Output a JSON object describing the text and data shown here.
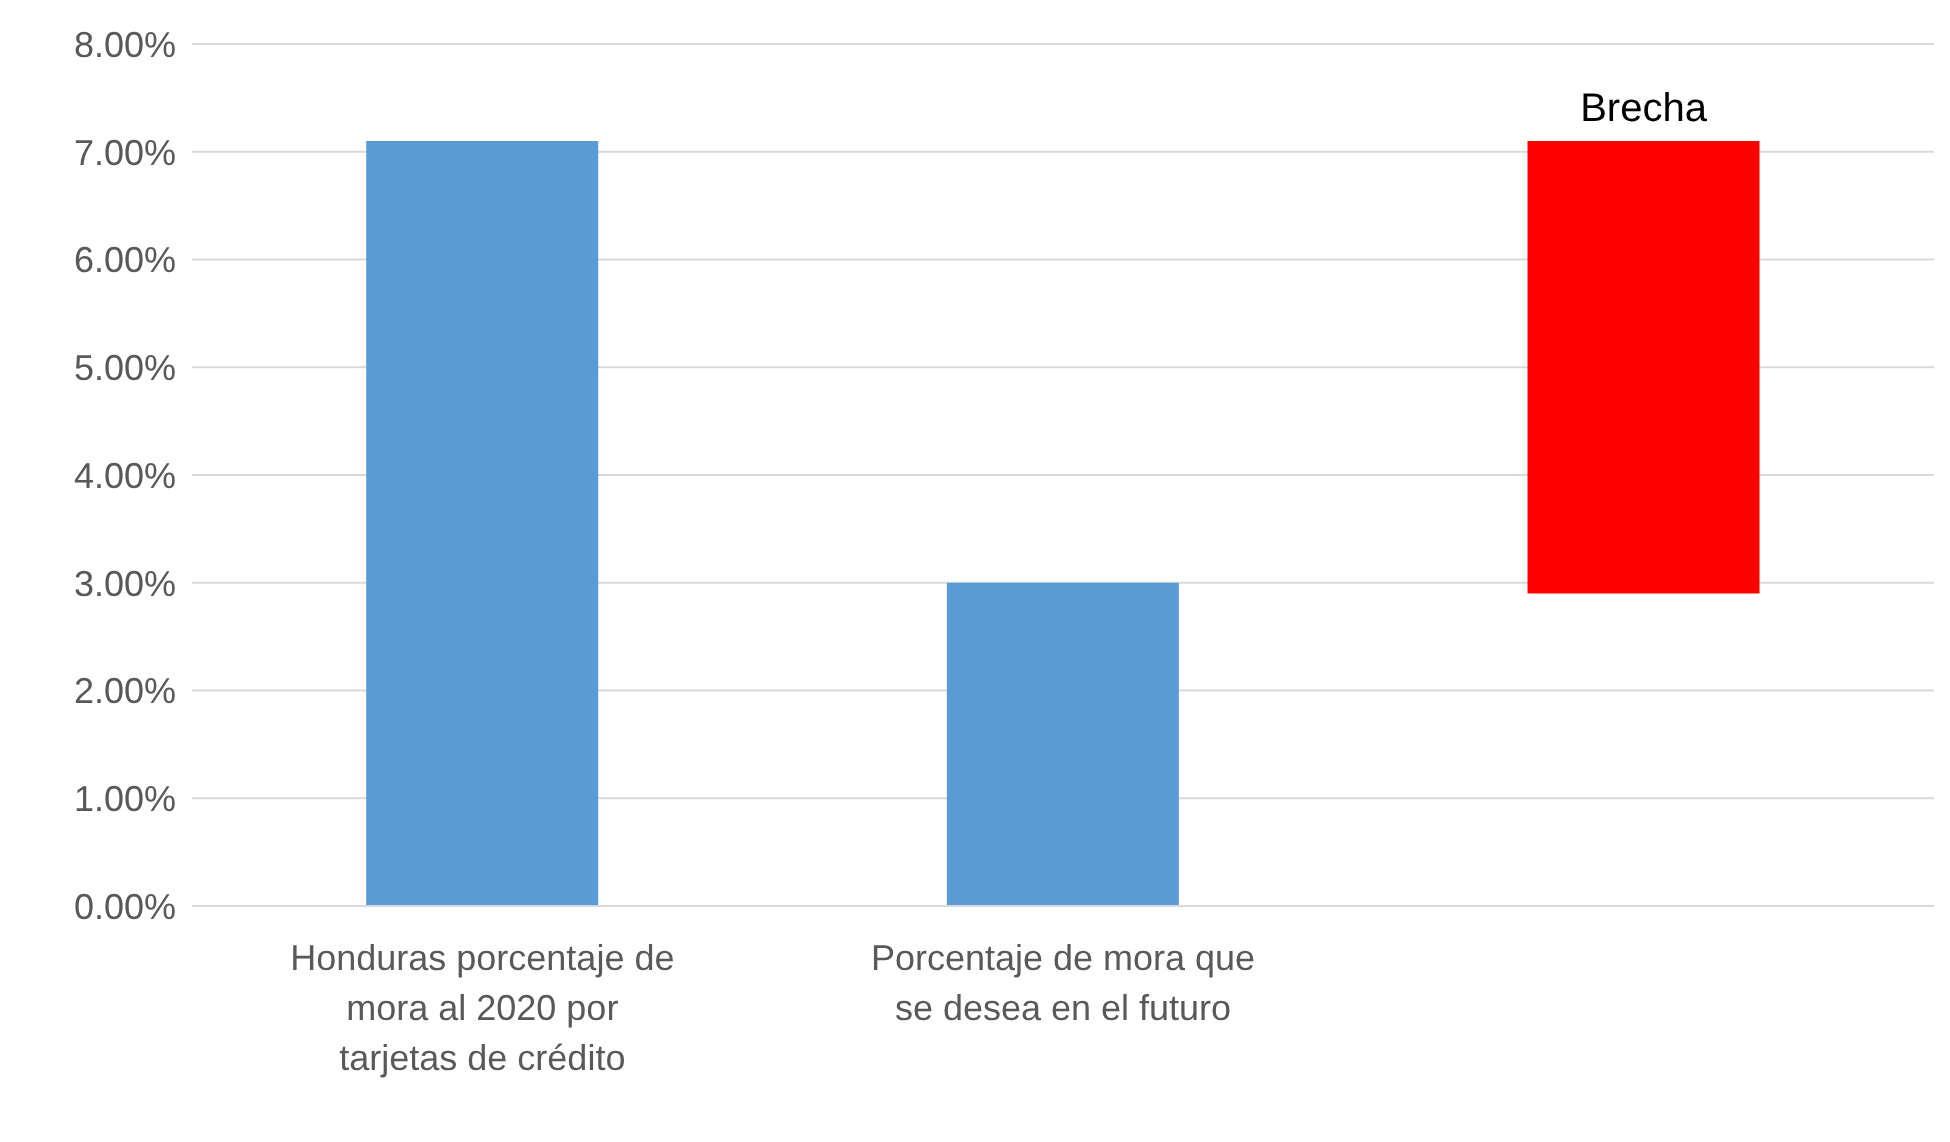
{
  "chart_data": {
    "type": "bar",
    "categories": [
      "Honduras porcentaje de mora al 2020 por tarjetas de crédito",
      "Porcentaje de mora que se desea en el futuro",
      null
    ],
    "values": [
      7.1,
      3.0,
      4.2
    ],
    "base": [
      0,
      0,
      2.9
    ],
    "colors": [
      "#5b9bd5",
      "#5b9bd5",
      "#ff0000"
    ],
    "ylim": [
      0,
      8
    ],
    "yticks": [
      {
        "value": 0,
        "label": "0.00%"
      },
      {
        "value": 1,
        "label": "1.00%"
      },
      {
        "value": 2,
        "label": "2.00%"
      },
      {
        "value": 3,
        "label": "3.00%"
      },
      {
        "value": 4,
        "label": "4.00%"
      },
      {
        "value": 5,
        "label": "5.00%"
      },
      {
        "value": 6,
        "label": "6.00%"
      },
      {
        "value": 7,
        "label": "7.00%"
      },
      {
        "value": 8,
        "label": "8.00%"
      }
    ],
    "grid": "y",
    "annotations": [
      "Brecha"
    ]
  }
}
